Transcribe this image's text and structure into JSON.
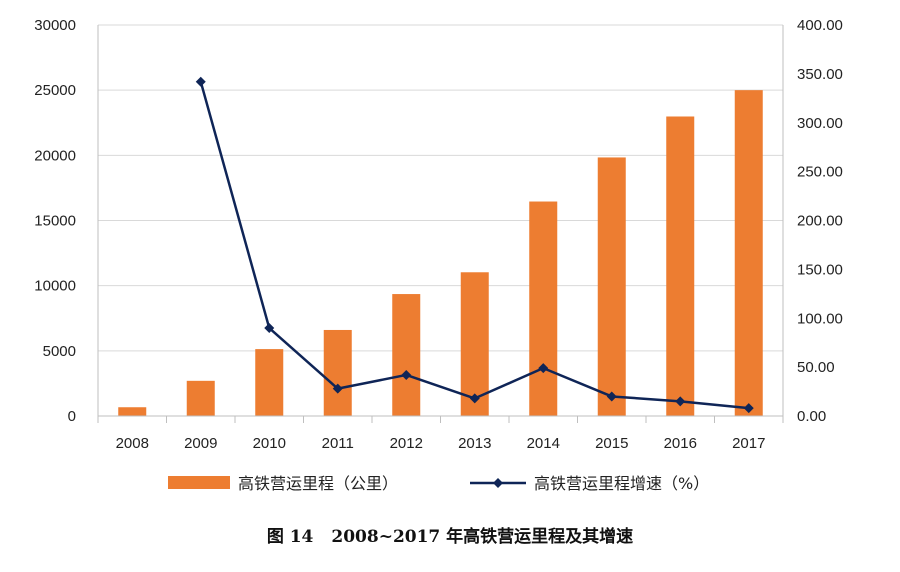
{
  "chart_data": {
    "type": "bar",
    "categories": [
      "2008",
      "2009",
      "2010",
      "2011",
      "2012",
      "2013",
      "2014",
      "2015",
      "2016",
      "2017"
    ],
    "series": [
      {
        "name": "高铁营运里程（公里）",
        "type": "bar",
        "axis": "left",
        "values": [
          672,
          2699,
          5133,
          6601,
          9356,
          11028,
          16456,
          19838,
          22980,
          25000
        ]
      },
      {
        "name": "高铁营运里程增速（%）",
        "type": "line",
        "axis": "right",
        "values": [
          null,
          342,
          90,
          28,
          42,
          18,
          49,
          20,
          15,
          8
        ]
      }
    ],
    "y_left": {
      "range": [
        0,
        30000
      ],
      "ticks": [
        "0",
        "5000",
        "10000",
        "15000",
        "20000",
        "25000",
        "30000"
      ]
    },
    "y_right": {
      "range": [
        0,
        400
      ],
      "ticks": [
        "0.00",
        "50.00",
        "100.00",
        "150.00",
        "200.00",
        "250.00",
        "300.00",
        "350.00",
        "400.00"
      ]
    },
    "grid": true,
    "legend": "bottom",
    "colors": {
      "bar": "#ED7D31",
      "line": "#0F2557",
      "grid": "#D9D9D9",
      "axis": "#BFBFBF"
    }
  },
  "caption": {
    "label": "图 14",
    "text": "2008~2017 年高铁营运里程及其增速"
  }
}
